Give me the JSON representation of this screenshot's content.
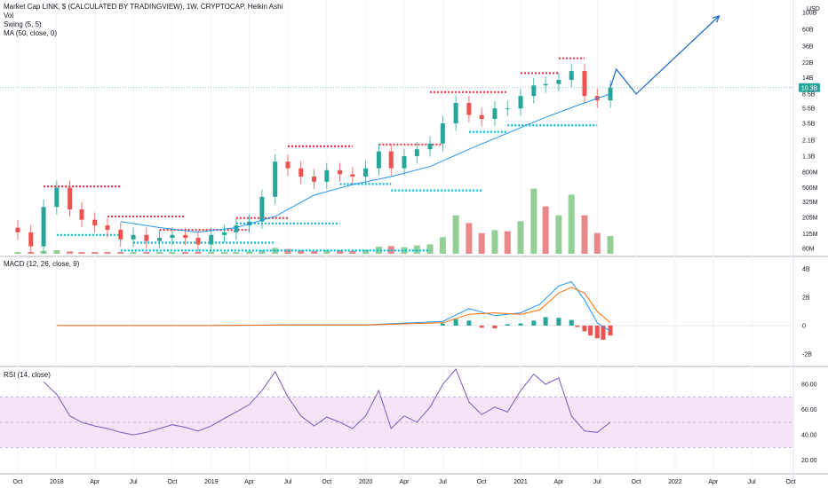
{
  "header": {
    "title": "Market Cap LINK, $ (CALCULATED BY TRADINGVIEW), 1W, CRYPTOCAP, Heikin Ashi",
    "vol": "Vol",
    "swing": "Swing (5, 5)",
    "ma": "MA (50, close, 0)",
    "macd": "MACD (12, 26, close, 9)",
    "rsi": "RSI (14, close)"
  },
  "colors": {
    "up": "#26a69a",
    "down": "#ef5350",
    "vol_up": "#81c784",
    "vol_down": "#e57373",
    "ma": "#2196f3",
    "swing_high": "#f23645",
    "swing_low": "#00bcd4",
    "macd_line": "#2196f3",
    "signal_line": "#ff6d00",
    "rsi_line": "#7e57c2",
    "rsi_band": "#f3e5f5",
    "projection": "#1565c0",
    "price_tag": "#26a69a"
  },
  "chart_data": [
    {
      "type": "line",
      "panel": "price",
      "title": "Market Cap LINK, $ (CALCULATED BY TRADINGVIEW), 1W, CRYPTOCAP, Heikin Ashi",
      "scale": "log",
      "currency": "USD",
      "y_tick_labels": [
        "100B",
        "60B",
        "36B",
        "22B",
        "14B",
        "8.5B",
        "5.5B",
        "3.5B",
        "2.1B",
        "1.3B",
        "800M",
        "500M",
        "325M",
        "205M",
        "125M",
        "80M"
      ],
      "y_tick_values": [
        100000000000,
        60000000000,
        36000000000,
        22000000000,
        14000000000,
        8500000000,
        5500000000,
        3500000000,
        2100000000,
        1300000000,
        800000000,
        500000000,
        325000000,
        205000000,
        125000000,
        80000000
      ],
      "x_tick_labels": [
        "Oct",
        "2018",
        "Apr",
        "Jul",
        "Oct",
        "2019",
        "Apr",
        "Jul",
        "Oct",
        "2020",
        "Apr",
        "Jul",
        "Oct",
        "2021",
        "Apr",
        "Jul",
        "Oct",
        "2022",
        "Apr",
        "Jul",
        "Oct"
      ],
      "last_value_label": "10.3B",
      "series": [
        {
          "name": "LINK market cap (weekly close)",
          "x": [
            "2017-10-01",
            "2017-11-01",
            "2017-12-01",
            "2018-01-01",
            "2018-02-01",
            "2018-03-01",
            "2018-04-01",
            "2018-05-01",
            "2018-06-01",
            "2018-07-01",
            "2018-08-01",
            "2018-09-01",
            "2018-10-01",
            "2018-11-01",
            "2018-12-01",
            "2019-01-01",
            "2019-02-01",
            "2019-03-01",
            "2019-04-01",
            "2019-05-01",
            "2019-06-01",
            "2019-07-01",
            "2019-08-01",
            "2019-09-01",
            "2019-10-01",
            "2019-11-01",
            "2019-12-01",
            "2020-01-01",
            "2020-02-01",
            "2020-03-01",
            "2020-04-01",
            "2020-05-01",
            "2020-06-01",
            "2020-07-01",
            "2020-08-01",
            "2020-09-01",
            "2020-10-01",
            "2020-11-01",
            "2020-12-01",
            "2021-01-01",
            "2021-02-01",
            "2021-03-01",
            "2021-04-01",
            "2021-05-01",
            "2021-06-01",
            "2021-07-01",
            "2021-08-01"
          ],
          "values": [
            130000000,
            85000000,
            280000000,
            500000000,
            260000000,
            190000000,
            160000000,
            140000000,
            105000000,
            120000000,
            100000000,
            110000000,
            120000000,
            110000000,
            90000000,
            120000000,
            130000000,
            160000000,
            180000000,
            380000000,
            1100000000,
            900000000,
            700000000,
            600000000,
            850000000,
            750000000,
            700000000,
            900000000,
            1500000000,
            900000000,
            1300000000,
            1600000000,
            1900000000,
            3500000000,
            6500000000,
            4500000000,
            4000000000,
            5500000000,
            5500000000,
            8000000000,
            11000000000,
            11500000000,
            13000000000,
            17000000000,
            8000000000,
            7000000000,
            10300000000
          ]
        },
        {
          "name": "MA (50, close, 0)",
          "x": [
            "2018-06-01",
            "2018-09-01",
            "2018-12-01",
            "2019-03-01",
            "2019-06-01",
            "2019-09-01",
            "2019-12-01",
            "2020-03-01",
            "2020-06-01",
            "2020-09-01",
            "2020-12-01",
            "2021-03-01",
            "2021-06-01",
            "2021-08-01"
          ],
          "values": [
            180000000,
            150000000,
            130000000,
            150000000,
            210000000,
            400000000,
            550000000,
            700000000,
            950000000,
            1600000000,
            2600000000,
            4200000000,
            6500000000,
            8500000000
          ]
        }
      ],
      "swing_levels": [
        {
          "kind": "high",
          "value": 520000000,
          "from": "2017-12-01",
          "to": "2018-06-01"
        },
        {
          "kind": "high",
          "value": 210000000,
          "from": "2018-05-01",
          "to": "2018-11-01"
        },
        {
          "kind": "high",
          "value": 140000000,
          "from": "2018-09-01",
          "to": "2019-04-01"
        },
        {
          "kind": "high",
          "value": 200000000,
          "from": "2019-03-01",
          "to": "2019-07-01"
        },
        {
          "kind": "high",
          "value": 1750000000,
          "from": "2019-07-01",
          "to": "2019-12-01"
        },
        {
          "kind": "high",
          "value": 1850000000,
          "from": "2020-02-01",
          "to": "2020-07-01"
        },
        {
          "kind": "high",
          "value": 9000000000,
          "from": "2020-06-01",
          "to": "2020-12-01"
        },
        {
          "kind": "high",
          "value": 16000000000,
          "from": "2021-01-01",
          "to": "2021-04-01"
        },
        {
          "kind": "high",
          "value": 25000000000,
          "from": "2021-04-01",
          "to": "2021-06-01"
        },
        {
          "kind": "low",
          "value": 120000000,
          "from": "2018-01-01",
          "to": "2018-06-01"
        },
        {
          "kind": "low",
          "value": 95000000,
          "from": "2018-07-01",
          "to": "2019-06-01"
        },
        {
          "kind": "low",
          "value": 75000000,
          "from": "2018-06-01",
          "to": "2020-06-01"
        },
        {
          "kind": "low",
          "value": 170000000,
          "from": "2019-03-01",
          "to": "2019-11-01"
        },
        {
          "kind": "low",
          "value": 560000000,
          "from": "2019-11-01",
          "to": "2020-03-01"
        },
        {
          "kind": "low",
          "value": 460000000,
          "from": "2020-03-01",
          "to": "2020-10-01"
        },
        {
          "kind": "low",
          "value": 2700000000,
          "from": "2020-09-01",
          "to": "2020-12-01"
        },
        {
          "kind": "low",
          "value": 3300000000,
          "from": "2020-12-01",
          "to": "2021-07-01"
        }
      ],
      "projection": {
        "x": [
          "2021-08-01",
          "2021-08-15",
          "2021-10-01",
          "2022-04-15"
        ],
        "values": [
          10300000000,
          18000000000,
          8500000000,
          90000000000
        ]
      }
    },
    {
      "type": "bar",
      "panel": "volume",
      "title": "Vol",
      "x": [
        "2017-10-01",
        "2017-11-01",
        "2017-12-01",
        "2018-01-01",
        "2018-02-01",
        "2018-03-01",
        "2018-04-01",
        "2018-05-01",
        "2018-06-01",
        "2018-07-01",
        "2018-08-01",
        "2018-09-01",
        "2018-10-01",
        "2018-11-01",
        "2018-12-01",
        "2019-01-01",
        "2019-02-01",
        "2019-03-01",
        "2019-04-01",
        "2019-05-01",
        "2019-06-01",
        "2019-07-01",
        "2019-08-01",
        "2019-09-01",
        "2019-10-01",
        "2019-11-01",
        "2019-12-01",
        "2020-01-01",
        "2020-02-01",
        "2020-03-01",
        "2020-04-01",
        "2020-05-01",
        "2020-06-01",
        "2020-07-01",
        "2020-08-01",
        "2020-09-01",
        "2020-10-01",
        "2020-11-01",
        "2020-12-01",
        "2021-01-01",
        "2021-02-01",
        "2021-03-01",
        "2021-04-01",
        "2021-05-01",
        "2021-06-01",
        "2021-07-01",
        "2021-08-01"
      ],
      "values": [
        0.3,
        0.3,
        0.5,
        0.6,
        0.4,
        0.3,
        0.3,
        0.3,
        0.3,
        0.3,
        0.3,
        0.3,
        0.3,
        0.3,
        0.3,
        0.3,
        0.3,
        0.3,
        0.4,
        0.6,
        1.0,
        0.8,
        0.6,
        0.5,
        0.6,
        0.6,
        0.5,
        0.7,
        1.2,
        1.3,
        1.1,
        1.4,
        1.6,
        2.8,
        6.5,
        5.2,
        3.5,
        4.0,
        3.8,
        5.5,
        11.0,
        8.0,
        6.5,
        10.0,
        6.5,
        3.5,
        3.0
      ],
      "up": [
        true,
        false,
        true,
        true,
        false,
        false,
        false,
        false,
        false,
        true,
        false,
        true,
        true,
        false,
        false,
        true,
        true,
        true,
        true,
        true,
        true,
        false,
        false,
        false,
        true,
        false,
        false,
        true,
        true,
        false,
        true,
        true,
        true,
        true,
        true,
        false,
        false,
        true,
        false,
        true,
        true,
        false,
        true,
        true,
        false,
        false,
        true
      ]
    },
    {
      "type": "line",
      "panel": "macd",
      "title": "MACD (12, 26, close, 9)",
      "y_tick_labels": [
        "4B",
        "2B",
        "0",
        "-2B"
      ],
      "y_tick_values": [
        4000000000,
        2000000000,
        0,
        -2000000000
      ],
      "ylim": [
        -2700000000,
        4700000000
      ],
      "x": [
        "2018-01-01",
        "2018-07-01",
        "2019-01-01",
        "2019-07-01",
        "2020-01-01",
        "2020-07-01",
        "2020-09-01",
        "2020-11-01",
        "2021-01-01",
        "2021-02-15",
        "2021-04-01",
        "2021-05-01",
        "2021-06-01",
        "2021-07-01",
        "2021-08-01"
      ],
      "series": [
        {
          "name": "MACD",
          "values": [
            0,
            0,
            0,
            50000000,
            50000000,
            300000000,
            1200000000,
            700000000,
            900000000,
            1500000000,
            2800000000,
            3100000000,
            1800000000,
            200000000,
            -400000000
          ]
        },
        {
          "name": "Signal",
          "values": [
            0,
            0,
            0,
            40000000,
            40000000,
            200000000,
            800000000,
            900000000,
            800000000,
            1100000000,
            2300000000,
            2700000000,
            2300000000,
            1000000000,
            200000000
          ]
        }
      ],
      "histogram": {
        "x": [
          "2020-07-01",
          "2020-08-01",
          "2020-09-01",
          "2020-10-01",
          "2020-11-01",
          "2020-12-01",
          "2021-01-01",
          "2021-02-01",
          "2021-03-01",
          "2021-04-01",
          "2021-05-01",
          "2021-05-15",
          "2021-06-01",
          "2021-06-15",
          "2021-07-01",
          "2021-07-15",
          "2021-08-01"
        ],
        "values": [
          150000000,
          450000000,
          350000000,
          -150000000,
          -200000000,
          100000000,
          150000000,
          350000000,
          600000000,
          550000000,
          400000000,
          -100000000,
          -400000000,
          -700000000,
          -900000000,
          -1000000000,
          -700000000
        ]
      }
    },
    {
      "type": "line",
      "panel": "rsi",
      "title": "RSI (14, close)",
      "y_tick_labels": [
        "80.00",
        "60.00",
        "40.00",
        "20.00"
      ],
      "y_tick_values": [
        80,
        60,
        40,
        20
      ],
      "ylim": [
        12,
        92
      ],
      "band": [
        30,
        70
      ],
      "x": [
        "2017-12-01",
        "2018-01-01",
        "2018-02-01",
        "2018-03-01",
        "2018-04-01",
        "2018-05-01",
        "2018-06-01",
        "2018-07-01",
        "2018-08-01",
        "2018-09-01",
        "2018-10-01",
        "2018-11-01",
        "2018-12-01",
        "2019-01-01",
        "2019-02-01",
        "2019-03-01",
        "2019-04-01",
        "2019-05-01",
        "2019-06-01",
        "2019-07-01",
        "2019-08-01",
        "2019-09-01",
        "2019-10-01",
        "2019-11-01",
        "2019-12-01",
        "2020-01-01",
        "2020-02-01",
        "2020-03-01",
        "2020-04-01",
        "2020-05-01",
        "2020-06-01",
        "2020-07-01",
        "2020-08-01",
        "2020-09-01",
        "2020-10-01",
        "2020-11-01",
        "2020-12-01",
        "2021-01-01",
        "2021-02-01",
        "2021-03-01",
        "2021-04-01",
        "2021-05-01",
        "2021-06-01",
        "2021-07-01",
        "2021-08-01"
      ],
      "values": [
        82,
        72,
        55,
        50,
        47,
        45,
        42,
        40,
        42,
        45,
        48,
        46,
        43,
        47,
        53,
        58,
        64,
        75,
        90,
        70,
        55,
        47,
        54,
        50,
        45,
        55,
        75,
        45,
        55,
        50,
        62,
        80,
        92,
        66,
        56,
        62,
        58,
        75,
        88,
        80,
        85,
        55,
        43,
        42,
        50
      ]
    }
  ]
}
